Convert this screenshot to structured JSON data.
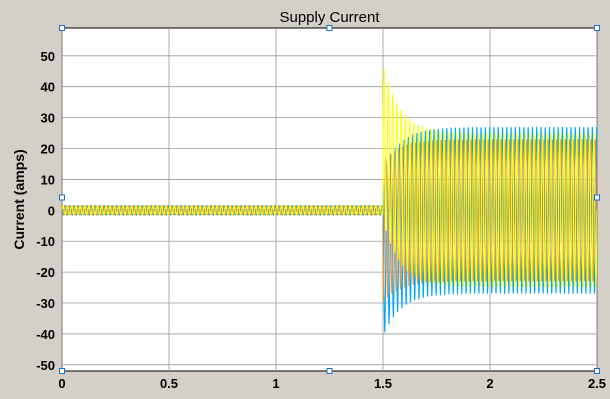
{
  "chart_data": {
    "type": "line",
    "title": "Supply Current",
    "xlabel": "",
    "ylabel": "Current (amps)",
    "xlim": [
      0,
      2.5
    ],
    "ylim": [
      -52,
      59
    ],
    "x_ticks": [
      0,
      0.5,
      1,
      1.5,
      2,
      2.5
    ],
    "x_tick_labels": [
      "0",
      "0.5",
      "1",
      "1.5",
      "2",
      "2.5"
    ],
    "y_ticks": [
      -50,
      -40,
      -30,
      -20,
      -10,
      0,
      10,
      20,
      30,
      40,
      50
    ],
    "y_tick_labels": [
      "-50",
      "-40",
      "-30",
      "-20",
      "-10",
      "0",
      "10",
      "20",
      "30",
      "40",
      "50"
    ],
    "grid": true,
    "frequency_hz": 50,
    "series": [
      {
        "color": "#ffff00",
        "phase_deg": 0,
        "pre_step_amplitude": 1.5,
        "step_time": 1.5,
        "steady_amplitude": 25,
        "peak_after_step": 47,
        "transient_offset": 22,
        "offset_decay_time": 0.08
      },
      {
        "color": "#00a6ff",
        "phase_deg": 120,
        "pre_step_amplitude": 1.5,
        "step_time": 1.5,
        "steady_amplitude": 27,
        "peak_after_step": -41,
        "transient_offset": -14,
        "offset_decay_time": 0.08
      },
      {
        "color": "#e8923a",
        "phase_deg": 240,
        "pre_step_amplitude": 1.5,
        "step_time": 1.5,
        "steady_amplitude": 23,
        "peak_after_step": -30,
        "transient_offset": -7,
        "offset_decay_time": 0.08
      }
    ]
  }
}
